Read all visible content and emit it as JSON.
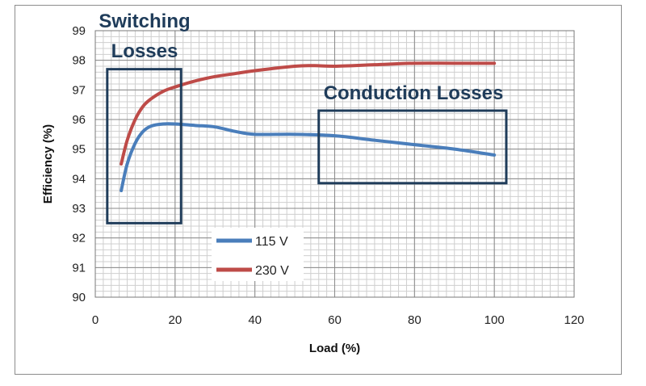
{
  "chart_data": {
    "type": "line",
    "title": "",
    "xlabel": "Load (%)",
    "ylabel": "Efficiency (%)",
    "xlim": [
      0,
      120
    ],
    "ylim": [
      90,
      99
    ],
    "x_ticks": [
      "0",
      "20",
      "40",
      "60",
      "80",
      "100",
      "120"
    ],
    "y_ticks": [
      "90",
      "91",
      "92",
      "93",
      "94",
      "95",
      "96",
      "97",
      "98",
      "99"
    ],
    "grid": true,
    "legend_position": "bottom-center",
    "series": [
      {
        "name": "115 V",
        "color": "#4a7ebb",
        "x": [
          6.5,
          8,
          10,
          12,
          14,
          17,
          20,
          25,
          30,
          35,
          40,
          50,
          60,
          70,
          80,
          90,
          100
        ],
        "y": [
          93.6,
          94.5,
          95.2,
          95.6,
          95.78,
          95.85,
          95.85,
          95.8,
          95.75,
          95.6,
          95.5,
          95.5,
          95.45,
          95.3,
          95.15,
          95.0,
          94.8
        ]
      },
      {
        "name": "230 V",
        "color": "#be4b48",
        "x": [
          6.5,
          8,
          10,
          12,
          14,
          17,
          20,
          25,
          30,
          35,
          40,
          50,
          55,
          60,
          70,
          80,
          90,
          100
        ],
        "y": [
          94.5,
          95.3,
          96.0,
          96.45,
          96.7,
          96.95,
          97.1,
          97.3,
          97.45,
          97.55,
          97.65,
          97.8,
          97.82,
          97.8,
          97.85,
          97.9,
          97.9,
          97.9
        ]
      }
    ],
    "annotations": [
      {
        "text_lines": [
          "Switching",
          "Losses"
        ],
        "box": {
          "x": [
            3,
            21.5
          ],
          "y": [
            92.5,
            97.7
          ]
        }
      },
      {
        "text_lines": [
          "Conduction Losses"
        ],
        "box": {
          "x": [
            56,
            103
          ],
          "y": [
            93.85,
            96.3
          ]
        }
      }
    ],
    "annotation_color": "#1f3c5a"
  }
}
